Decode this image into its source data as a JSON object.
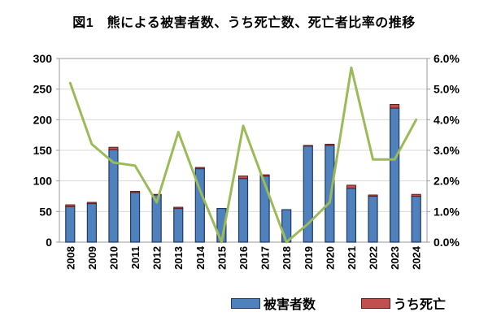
{
  "title": "図1　熊による被害者数、うち死亡数、死亡者比率の推移",
  "legend": {
    "victims_label": "被害者数",
    "deaths_label": "うち死亡"
  },
  "colors": {
    "victims_bar": "#4f81bd",
    "victims_border": "#1f3864",
    "deaths_bar": "#c0504d",
    "deaths_border": "#5f1d1b",
    "rate_line": "#9bbb59",
    "gridline": "#d9d9d9",
    "plot_border": "#9b9b9b",
    "text": "#000000",
    "background": "#ffffff"
  },
  "chart_data": {
    "type": "bar",
    "subtype": "stacked-bar-with-line-combo",
    "title": "図1　熊による被害者数、うち死亡数、死亡者比率の推移",
    "categories": [
      "2008",
      "2009",
      "2010",
      "2011",
      "2012",
      "2013",
      "2014",
      "2015",
      "2016",
      "2017",
      "2018",
      "2019",
      "2020",
      "2021",
      "2022",
      "2023",
      "2024"
    ],
    "series": [
      {
        "name": "被害者数",
        "type": "bar",
        "stack": "s1",
        "values": [
          58,
          63,
          151,
          81,
          77,
          55,
          120,
          55,
          104,
          108,
          53,
          157,
          158,
          88,
          75,
          219,
          75
        ]
      },
      {
        "name": "うち死亡",
        "type": "bar",
        "stack": "s1",
        "values": [
          3,
          2,
          4,
          2,
          1,
          2,
          2,
          0,
          4,
          2,
          0,
          1,
          2,
          5,
          2,
          6,
          3
        ]
      },
      {
        "name": "死亡者比率",
        "type": "line",
        "axis": "right",
        "values": [
          5.2,
          3.2,
          2.6,
          2.5,
          1.3,
          3.6,
          1.7,
          0.0,
          3.8,
          1.9,
          0.0,
          0.6,
          1.3,
          5.7,
          2.7,
          2.7,
          4.0
        ]
      }
    ],
    "left_axis": {
      "min": 0,
      "max": 300,
      "tick_labels": [
        "0",
        "50",
        "100",
        "150",
        "200",
        "250",
        "300"
      ]
    },
    "right_axis": {
      "min": 0,
      "max": 6,
      "tick_labels": [
        "0.0%",
        "1.0%",
        "2.0%",
        "3.0%",
        "4.0%",
        "5.0%",
        "6.0%"
      ]
    },
    "xlabel": "",
    "ylabel": "",
    "grid": true,
    "legend_position": "bottom",
    "legend_entries": [
      "被害者数",
      "うち死亡"
    ]
  }
}
